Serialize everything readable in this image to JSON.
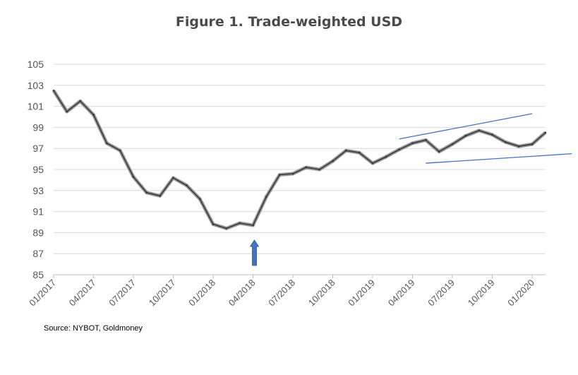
{
  "title": "Figure 1. Trade-weighted USD",
  "source": "Source: NYBOT, Goldmoney",
  "chart_data": {
    "type": "line",
    "title": "Figure 1. Trade-weighted USD",
    "xlabel": "",
    "ylabel": "",
    "ylim": [
      85,
      105
    ],
    "y_ticks": [
      "85",
      "87",
      "89",
      "91",
      "93",
      "95",
      "97",
      "99",
      "101",
      "103",
      "105"
    ],
    "x_ticks": [
      "01/2017",
      "04/2017",
      "07/2017",
      "10/2017",
      "01/2018",
      "04/2018",
      "07/2018",
      "10/2018",
      "01/2019",
      "04/2019",
      "07/2019",
      "10/2019",
      "01/2020"
    ],
    "grid": true,
    "legend": "none",
    "series_color": "#3a3a3a",
    "series": [
      {
        "x": [
          "2017-01",
          "2017-02",
          "2017-03",
          "2017-04",
          "2017-05",
          "2017-06",
          "2017-07",
          "2017-08",
          "2017-09",
          "2017-10",
          "2017-11",
          "2017-12",
          "2018-01",
          "2018-02",
          "2018-03",
          "2018-04",
          "2018-05",
          "2018-06",
          "2018-07",
          "2018-08",
          "2018-09",
          "2018-10",
          "2018-11",
          "2018-12",
          "2019-01",
          "2019-02",
          "2019-03",
          "2019-04",
          "2019-05",
          "2019-06",
          "2019-07",
          "2019-08",
          "2019-09",
          "2019-10",
          "2019-11",
          "2019-12",
          "2020-01",
          "2020-02"
        ],
        "values": [
          102.5,
          100.5,
          101.5,
          100.2,
          97.5,
          96.8,
          94.3,
          92.8,
          92.5,
          94.2,
          93.5,
          92.2,
          89.8,
          89.4,
          89.9,
          89.7,
          92.4,
          94.5,
          94.6,
          95.2,
          95.0,
          95.8,
          96.8,
          96.6,
          95.6,
          96.2,
          96.9,
          97.5,
          97.8,
          96.7,
          97.4,
          98.2,
          98.7,
          98.3,
          97.6,
          97.2,
          97.4,
          98.5
        ]
      }
    ],
    "annotations": [
      {
        "type": "arrow",
        "color": "#4472c4",
        "x": "2018-04",
        "direction": "up",
        "text": ""
      },
      {
        "type": "trendline",
        "color": "#4472c4",
        "from": [
          "2019-03",
          97.9
        ],
        "to": [
          "2020-01",
          100.3
        ]
      },
      {
        "type": "trendline",
        "color": "#4472c4",
        "from": [
          "2019-05",
          95.6
        ],
        "to": [
          "2020-04",
          96.5
        ]
      }
    ]
  }
}
